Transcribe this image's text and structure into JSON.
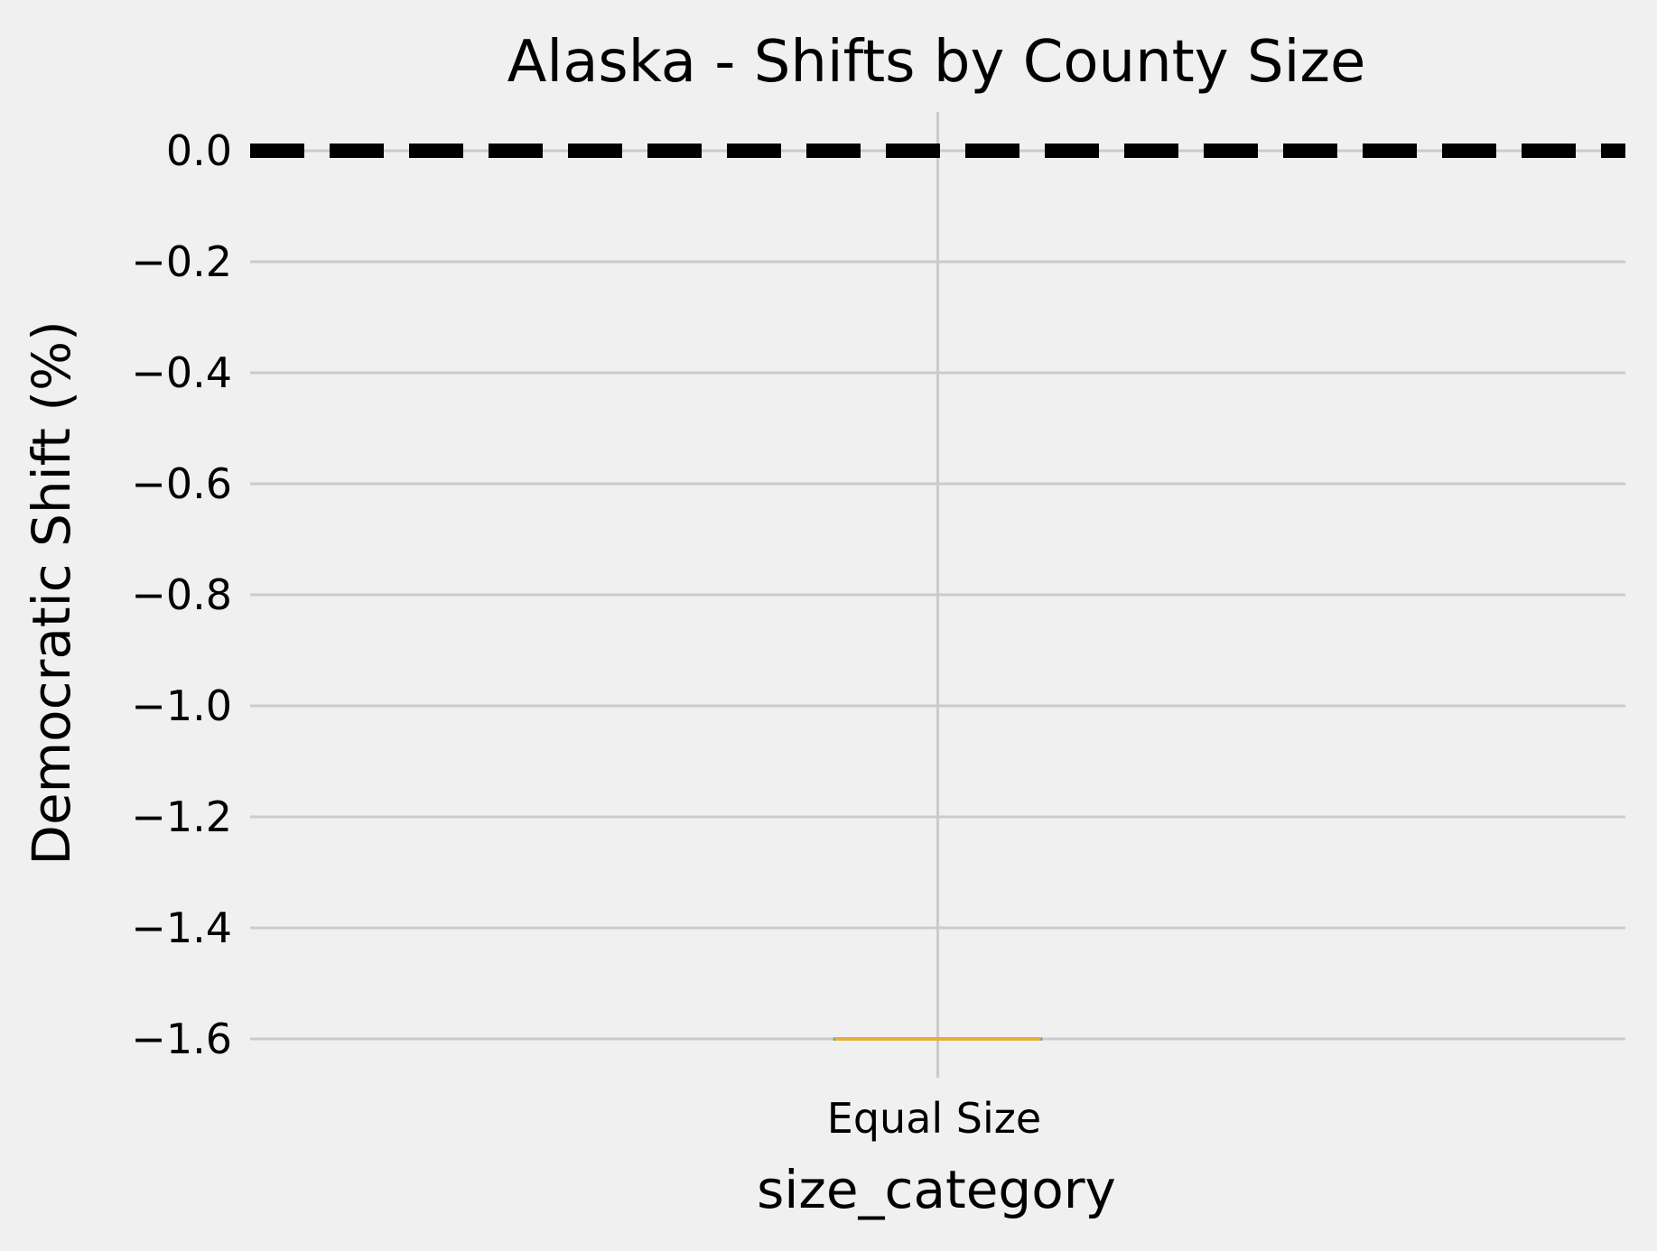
{
  "chart_data": {
    "type": "box",
    "title": "Alaska - Shifts by County Size",
    "xlabel": "size_category",
    "ylabel": "Democratic Shift (%)",
    "categories": [
      "Equal Size"
    ],
    "boxes": [
      {
        "category": "Equal Size",
        "min": -1.6,
        "q1": -1.6,
        "median": -1.6,
        "q3": -1.6,
        "max": -1.6
      }
    ],
    "yticks": [
      0.0,
      -0.2,
      -0.4,
      -0.6,
      -0.8,
      -1.0,
      -1.2,
      -1.4,
      -1.6
    ],
    "ytick_labels": [
      "0.0",
      "−0.2",
      "−0.4",
      "−0.6",
      "−0.8",
      "−1.0",
      "−1.2",
      "−1.4",
      "−1.6"
    ],
    "ylim": [
      -1.67,
      0.07
    ],
    "reference_line": {
      "y": 0,
      "style": "dashed",
      "color": "#000000"
    },
    "grid": true,
    "colors": {
      "background": "#f0f0f0",
      "grid": "#cbcbcb",
      "median": "#e5ae38",
      "box_edge": "#30a2da"
    }
  }
}
